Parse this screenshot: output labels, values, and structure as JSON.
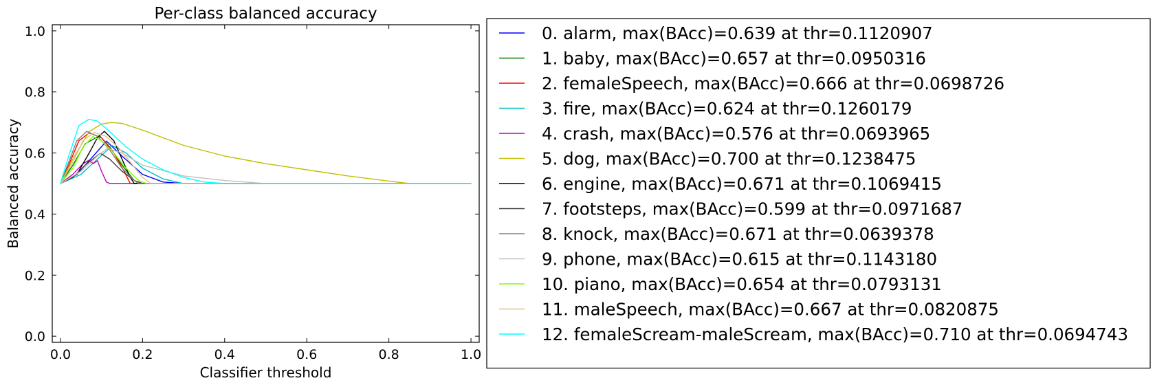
{
  "chart_data": {
    "type": "line",
    "title": "Per-class balanced accuracy",
    "xlabel": "Classifier threshold",
    "ylabel": "Balanced accuracy",
    "xlim": [
      -0.02,
      1.02
    ],
    "ylim": [
      -0.02,
      1.02
    ],
    "xticks": [
      0.0,
      0.2,
      0.4,
      0.6,
      0.8,
      1.0
    ],
    "xtick_labels": [
      "0.0",
      "0.2",
      "0.4",
      "0.6",
      "0.8",
      "1.0"
    ],
    "yticks": [
      0.0,
      0.2,
      0.4,
      0.6,
      0.8,
      1.0
    ],
    "ytick_labels": [
      "0.0",
      "0.2",
      "0.4",
      "0.6",
      "0.8",
      "1.0"
    ],
    "grid": false,
    "legend_position": "outside-right",
    "series": [
      {
        "name": "0. alarm, max(BAcc)=0.639 at thr=0.1120907",
        "color": "#0000ff",
        "points": [
          [
            0,
            0.5
          ],
          [
            0.04,
            0.53
          ],
          [
            0.08,
            0.59
          ],
          [
            0.112,
            0.639
          ],
          [
            0.15,
            0.59
          ],
          [
            0.2,
            0.53
          ],
          [
            0.25,
            0.505
          ],
          [
            0.3,
            0.5
          ],
          [
            1,
            0.5
          ]
        ]
      },
      {
        "name": "1. baby, max(BAcc)=0.657 at thr=0.0950316",
        "color": "#008000",
        "points": [
          [
            0,
            0.5
          ],
          [
            0.03,
            0.56
          ],
          [
            0.06,
            0.63
          ],
          [
            0.095,
            0.657
          ],
          [
            0.12,
            0.62
          ],
          [
            0.15,
            0.56
          ],
          [
            0.18,
            0.51
          ],
          [
            0.2,
            0.5
          ],
          [
            1,
            0.5
          ]
        ]
      },
      {
        "name": "2. femaleSpeech, max(BAcc)=0.666 at thr=0.0698726",
        "color": "#ff0000",
        "points": [
          [
            0,
            0.5
          ],
          [
            0.02,
            0.56
          ],
          [
            0.045,
            0.64
          ],
          [
            0.07,
            0.666
          ],
          [
            0.1,
            0.65
          ],
          [
            0.13,
            0.6
          ],
          [
            0.155,
            0.54
          ],
          [
            0.17,
            0.5
          ],
          [
            1,
            0.5
          ]
        ]
      },
      {
        "name": "3. fire, max(BAcc)=0.624 at thr=0.1260179",
        "color": "#00bfbf",
        "points": [
          [
            0,
            0.5
          ],
          [
            0.05,
            0.53
          ],
          [
            0.09,
            0.58
          ],
          [
            0.126,
            0.624
          ],
          [
            0.16,
            0.6
          ],
          [
            0.2,
            0.55
          ],
          [
            0.25,
            0.515
          ],
          [
            0.3,
            0.5
          ],
          [
            1,
            0.5
          ]
        ]
      },
      {
        "name": "4. crash, max(BAcc)=0.576 at thr=0.0693965",
        "color": "#bf00bf",
        "points": [
          [
            0,
            0.5
          ],
          [
            0.03,
            0.53
          ],
          [
            0.055,
            0.565
          ],
          [
            0.069,
            0.576
          ],
          [
            0.08,
            0.565
          ],
          [
            0.09,
            0.575
          ],
          [
            0.1,
            0.54
          ],
          [
            0.112,
            0.505
          ],
          [
            0.12,
            0.5
          ],
          [
            1,
            0.5
          ]
        ]
      },
      {
        "name": "5. dog, max(BAcc)=0.700 at thr=0.1238475",
        "color": "#bfbf00",
        "points": [
          [
            0,
            0.5
          ],
          [
            0.03,
            0.58
          ],
          [
            0.07,
            0.67
          ],
          [
            0.1,
            0.695
          ],
          [
            0.124,
            0.7
          ],
          [
            0.15,
            0.697
          ],
          [
            0.2,
            0.675
          ],
          [
            0.25,
            0.65
          ],
          [
            0.3,
            0.625
          ],
          [
            0.4,
            0.59
          ],
          [
            0.5,
            0.565
          ],
          [
            0.6,
            0.545
          ],
          [
            0.7,
            0.525
          ],
          [
            0.8,
            0.508
          ],
          [
            0.85,
            0.5
          ],
          [
            1,
            0.5
          ]
        ]
      },
      {
        "name": "6. engine, max(BAcc)=0.671 at thr=0.1069415",
        "color": "#000000",
        "points": [
          [
            0,
            0.5
          ],
          [
            0.04,
            0.53
          ],
          [
            0.07,
            0.6
          ],
          [
            0.09,
            0.65
          ],
          [
            0.107,
            0.671
          ],
          [
            0.13,
            0.64
          ],
          [
            0.15,
            0.58
          ],
          [
            0.17,
            0.52
          ],
          [
            0.18,
            0.5
          ],
          [
            1,
            0.5
          ]
        ]
      },
      {
        "name": "7. footsteps, max(BAcc)=0.599 at thr=0.0971687",
        "color": "#404040",
        "points": [
          [
            0,
            0.5
          ],
          [
            0.03,
            0.52
          ],
          [
            0.06,
            0.56
          ],
          [
            0.097,
            0.599
          ],
          [
            0.12,
            0.58
          ],
          [
            0.15,
            0.54
          ],
          [
            0.18,
            0.51
          ],
          [
            0.2,
            0.5
          ],
          [
            1,
            0.5
          ]
        ]
      },
      {
        "name": "8. knock, max(BAcc)=0.671 at thr=0.0639378",
        "color": "#808080",
        "points": [
          [
            0,
            0.5
          ],
          [
            0.02,
            0.57
          ],
          [
            0.04,
            0.64
          ],
          [
            0.064,
            0.671
          ],
          [
            0.09,
            0.655
          ],
          [
            0.12,
            0.61
          ],
          [
            0.15,
            0.55
          ],
          [
            0.18,
            0.51
          ],
          [
            0.19,
            0.5
          ],
          [
            1,
            0.5
          ]
        ]
      },
      {
        "name": "9. phone, max(BAcc)=0.615 at thr=0.1143180",
        "color": "#c0c0c0",
        "points": [
          [
            0,
            0.5
          ],
          [
            0.05,
            0.54
          ],
          [
            0.09,
            0.59
          ],
          [
            0.114,
            0.615
          ],
          [
            0.15,
            0.6
          ],
          [
            0.2,
            0.56
          ],
          [
            0.3,
            0.525
          ],
          [
            0.4,
            0.51
          ],
          [
            0.5,
            0.5
          ],
          [
            1,
            0.5
          ]
        ]
      },
      {
        "name": "10. piano, max(BAcc)=0.654 at thr=0.0793131",
        "color": "#80ff00",
        "points": [
          [
            0,
            0.5
          ],
          [
            0.03,
            0.55
          ],
          [
            0.055,
            0.62
          ],
          [
            0.079,
            0.654
          ],
          [
            0.1,
            0.64
          ],
          [
            0.13,
            0.6
          ],
          [
            0.16,
            0.55
          ],
          [
            0.19,
            0.51
          ],
          [
            0.21,
            0.5
          ],
          [
            1,
            0.5
          ]
        ]
      },
      {
        "name": "11. maleSpeech, max(BAcc)=0.667 at thr=0.0820875",
        "color": "#e0c090",
        "points": [
          [
            0,
            0.5
          ],
          [
            0.03,
            0.57
          ],
          [
            0.055,
            0.64
          ],
          [
            0.082,
            0.667
          ],
          [
            0.11,
            0.655
          ],
          [
            0.14,
            0.62
          ],
          [
            0.17,
            0.57
          ],
          [
            0.2,
            0.52
          ],
          [
            0.22,
            0.5
          ],
          [
            1,
            0.5
          ]
        ]
      },
      {
        "name": "12. femaleScream-maleScream, max(BAcc)=0.710 at thr=0.0694743",
        "color": "#00ffff",
        "points": [
          [
            0,
            0.5
          ],
          [
            0.02,
            0.59
          ],
          [
            0.045,
            0.69
          ],
          [
            0.069,
            0.71
          ],
          [
            0.09,
            0.705
          ],
          [
            0.12,
            0.67
          ],
          [
            0.16,
            0.62
          ],
          [
            0.2,
            0.58
          ],
          [
            0.25,
            0.545
          ],
          [
            0.3,
            0.52
          ],
          [
            0.35,
            0.505
          ],
          [
            0.4,
            0.5
          ],
          [
            1,
            0.5
          ]
        ]
      }
    ]
  }
}
